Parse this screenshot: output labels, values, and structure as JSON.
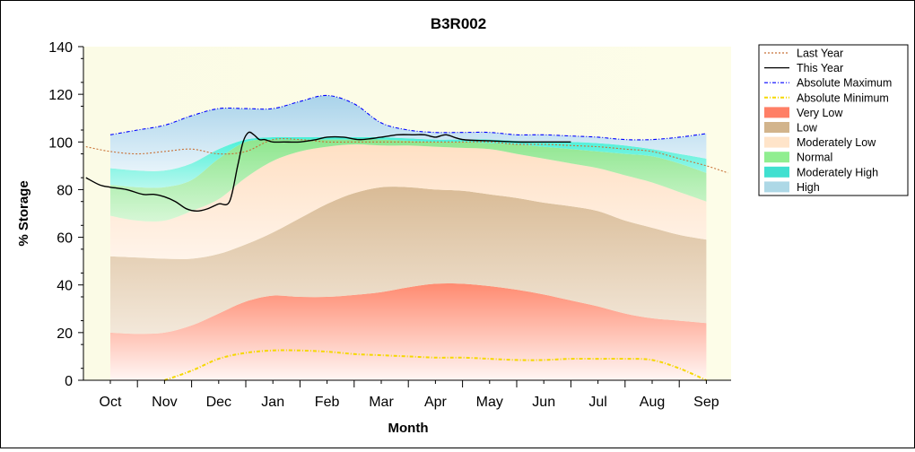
{
  "chart_data": {
    "type": "area",
    "title": "B3R002",
    "xlabel": "Month",
    "ylabel": "% Storage",
    "ylim": [
      0,
      140
    ],
    "yticks": [
      "0",
      "20",
      "40",
      "60",
      "80",
      "100",
      "120",
      "140"
    ],
    "categories": [
      "Oct",
      "Nov",
      "Dec",
      "Jan",
      "Feb",
      "Mar",
      "Apr",
      "May",
      "Jun",
      "Jul",
      "Aug",
      "Sep"
    ],
    "legend_position": "right",
    "grid": false,
    "bands_x": [
      0,
      0.5,
      1,
      1.5,
      2,
      2.5,
      3,
      3.5,
      4,
      4.5,
      5,
      5.5,
      6,
      6.5,
      7,
      7.5,
      8,
      8.5,
      9,
      9.5,
      10,
      10.5,
      11
    ],
    "band_edges": {
      "very_low_top": [
        20,
        19.5,
        20,
        23,
        28,
        33,
        35.5,
        35,
        35,
        35.8,
        37,
        39,
        40.5,
        40.5,
        39.5,
        38,
        36,
        33.5,
        31,
        28,
        26,
        25,
        24
      ],
      "low_top": [
        52,
        51.5,
        51,
        51,
        53,
        57,
        62,
        68,
        74,
        78.5,
        81,
        81,
        80,
        79.5,
        78,
        76.5,
        74.5,
        73,
        71,
        67,
        64,
        61,
        59
      ],
      "moderately_low_top": [
        69,
        67,
        67,
        71,
        76,
        85,
        92,
        96,
        98,
        99,
        98.5,
        98.5,
        98,
        97.5,
        97,
        95,
        93,
        91,
        89,
        86,
        83,
        79,
        75
      ],
      "normal_top": [
        82,
        81,
        81,
        84,
        93,
        100,
        101,
        101,
        101,
        101,
        101,
        100.5,
        100,
        100,
        99.5,
        99,
        98,
        97,
        96,
        95,
        94,
        91,
        87
      ],
      "moderately_high_top": [
        89,
        88,
        88,
        91,
        97,
        101,
        102,
        102,
        102,
        102,
        102,
        101.5,
        101,
        101,
        101,
        100.5,
        100,
        100,
        99.5,
        98.5,
        97,
        95,
        93
      ],
      "high_top": [
        103,
        105,
        107,
        111,
        114,
        114,
        114,
        117,
        119.5,
        116,
        108,
        105,
        104,
        104,
        104,
        103,
        103,
        102.5,
        102,
        101,
        101,
        102,
        103.5
      ]
    },
    "series": [
      {
        "name": "Last Year",
        "color": "#c87137",
        "dash": "dotted",
        "x": [
          -0.45,
          0,
          0.5,
          1,
          1.5,
          2,
          2.5,
          3,
          3.5,
          4,
          4.5,
          5,
          5.5,
          6,
          6.5,
          7,
          7.5,
          8,
          8.5,
          9,
          9.5,
          10,
          10.5,
          11,
          11.4
        ],
        "y": [
          98,
          96,
          95,
          96,
          97,
          95,
          96,
          101,
          101,
          100,
          100,
          100,
          100,
          100,
          100,
          100,
          99,
          99,
          98.5,
          98,
          97,
          96,
          93,
          90,
          87
        ]
      },
      {
        "name": "This Year",
        "color": "#000000",
        "dash": "solid",
        "x": [
          -0.45,
          -0.2,
          0,
          0.3,
          0.6,
          0.8,
          1.0,
          1.2,
          1.4,
          1.6,
          1.8,
          2.0,
          2.2,
          2.35,
          2.45,
          2.55,
          2.65,
          2.75,
          2.85,
          3.0,
          3.2,
          3.5,
          3.8,
          4.0,
          4.3,
          4.6,
          5.0,
          5.3,
          5.6,
          5.8,
          6.0,
          6.2,
          6.5,
          7.0,
          7.5,
          8.0,
          8.5
        ],
        "y": [
          85,
          82,
          81,
          80,
          78,
          78,
          77,
          75,
          72,
          71,
          72,
          74,
          75,
          90,
          100,
          104,
          103,
          101,
          101,
          100,
          100,
          100,
          101,
          102,
          102,
          101,
          102,
          103,
          103,
          103,
          102,
          103,
          101,
          100.5,
          100,
          100,
          100
        ]
      },
      {
        "name": "Absolute Maximum",
        "color": "#0000ff",
        "dash": "dashdot",
        "x": [
          0,
          0.5,
          1,
          1.5,
          2,
          2.5,
          3,
          3.5,
          4,
          4.5,
          5,
          5.5,
          6,
          6.5,
          7,
          7.5,
          8,
          8.5,
          9,
          9.5,
          10,
          10.5,
          11
        ],
        "y": [
          103,
          105,
          107,
          111,
          114,
          114,
          114,
          117,
          119.5,
          116,
          108,
          105,
          104,
          104,
          104,
          103,
          103,
          102.5,
          102,
          101,
          101,
          102,
          103.5
        ]
      },
      {
        "name": "Absolute Minimum",
        "color": "#f5d800",
        "dash": "dashdot",
        "x": [
          1,
          1.5,
          2,
          2.5,
          3,
          3.5,
          4,
          4.5,
          5,
          5.5,
          6,
          6.5,
          7,
          7.5,
          8,
          8.5,
          9,
          9.5,
          10,
          10.5,
          11
        ],
        "y": [
          0,
          4,
          9,
          11.5,
          12.5,
          12.5,
          12,
          11,
          10.5,
          10,
          9.5,
          9.5,
          9,
          8.5,
          8.5,
          9,
          9,
          9,
          8.5,
          5,
          0
        ]
      }
    ],
    "legend": [
      {
        "label": "Last Year",
        "kind": "line",
        "color": "#c87137",
        "dash": "dotted"
      },
      {
        "label": "This Year",
        "kind": "line",
        "color": "#000000",
        "dash": "solid"
      },
      {
        "label": "Absolute Maximum",
        "kind": "line",
        "color": "#0000ff",
        "dash": "dashdot"
      },
      {
        "label": "Absolute Minimum",
        "kind": "line",
        "color": "#f5d800",
        "dash": "dashdot"
      },
      {
        "label": "Very Low",
        "kind": "box",
        "color": "#ff7f66"
      },
      {
        "label": "Low",
        "kind": "box",
        "color": "#d2b48c"
      },
      {
        "label": "Moderately Low",
        "kind": "box",
        "color": "#ffe4c9"
      },
      {
        "label": "Normal",
        "kind": "box",
        "color": "#90ee90"
      },
      {
        "label": "Moderately High",
        "kind": "box",
        "color": "#40e0d0"
      },
      {
        "label": "High",
        "kind": "box",
        "color": "#add8e6"
      }
    ]
  }
}
